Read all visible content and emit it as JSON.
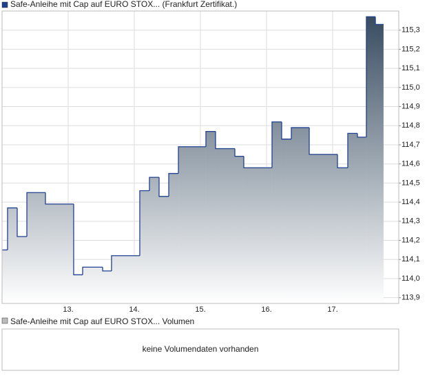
{
  "chart_data": {
    "type": "line",
    "x": [
      12.0,
      12.083,
      12.229,
      12.375,
      12.656,
      13.083,
      13.219,
      13.521,
      13.656,
      14.083,
      14.229,
      14.375,
      14.521,
      14.667,
      15.083,
      15.229,
      15.521,
      15.656,
      16.083,
      16.229,
      16.375,
      16.646,
      17.073,
      17.229,
      17.375,
      17.51,
      17.646,
      17.77
    ],
    "series": [
      {
        "name": "Safe-Anleihe mit Cap auf EURO STOX... (Frankfurt Zertifikat.)",
        "color": "#1f3f8f",
        "values": [
          114.15,
          114.37,
          114.22,
          114.45,
          114.39,
          114.02,
          114.06,
          114.04,
          114.12,
          114.46,
          114.53,
          114.43,
          114.55,
          114.69,
          114.77,
          114.68,
          114.64,
          114.58,
          114.82,
          114.73,
          114.79,
          114.65,
          114.58,
          114.76,
          114.74,
          115.37,
          115.33,
          115.33
        ]
      }
    ],
    "xlim": [
      12,
      18
    ],
    "ylim": [
      113.87,
      115.4
    ],
    "xticks": [
      {
        "value": 13,
        "label": "13."
      },
      {
        "value": 14,
        "label": "14."
      },
      {
        "value": 15,
        "label": "15."
      },
      {
        "value": 16,
        "label": "16."
      },
      {
        "value": 17,
        "label": "17."
      }
    ],
    "yticks": [
      {
        "value": 113.9,
        "label": "113,9"
      },
      {
        "value": 114.0,
        "label": "114,0"
      },
      {
        "value": 114.1,
        "label": "114,1"
      },
      {
        "value": 114.2,
        "label": "114,2"
      },
      {
        "value": 114.3,
        "label": "114,3"
      },
      {
        "value": 114.4,
        "label": "114,4"
      },
      {
        "value": 114.5,
        "label": "114,5"
      },
      {
        "value": 114.6,
        "label": "114,6"
      },
      {
        "value": 114.7,
        "label": "114,7"
      },
      {
        "value": 114.8,
        "label": "114,8"
      },
      {
        "value": 114.9,
        "label": "114,9"
      },
      {
        "value": 115.0,
        "label": "115,0"
      },
      {
        "value": 115.1,
        "label": "115,1"
      },
      {
        "value": 115.2,
        "label": "115,2"
      },
      {
        "value": 115.3,
        "label": "115,3"
      }
    ],
    "grid": true
  },
  "volume_panel": {
    "legend": "Safe-Anleihe mit Cap auf EURO STOX... Volumen",
    "message": "keine Volumendaten vorhanden"
  }
}
